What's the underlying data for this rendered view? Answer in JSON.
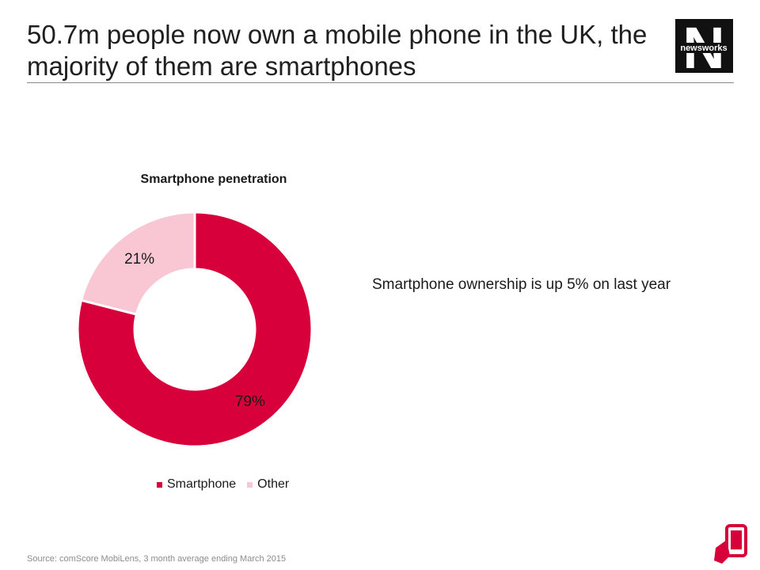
{
  "slide": {
    "title": "50.7m people now own a mobile phone in the UK, the majority of them are smartphones",
    "note": "Smartphone ownership is up 5% on last year",
    "source": "Source: comScore MobiLens, 3 month average ending March 2015"
  },
  "logo": {
    "text": "newsworks",
    "letter": "N"
  },
  "colors": {
    "smartphone": "#D7003A",
    "other": "#F9C6D4",
    "accent": "#D7003A"
  },
  "icons": {
    "corner": "mobile-phone-icon"
  },
  "chart_data": {
    "type": "pie",
    "style": "donut",
    "title": "Smartphone penetration",
    "categories": [
      "Smartphone",
      "Other"
    ],
    "values": [
      79,
      21
    ],
    "labels": [
      "79%",
      "21%"
    ],
    "legend": {
      "position": "bottom",
      "entries": [
        "Smartphone",
        "Other"
      ]
    }
  }
}
